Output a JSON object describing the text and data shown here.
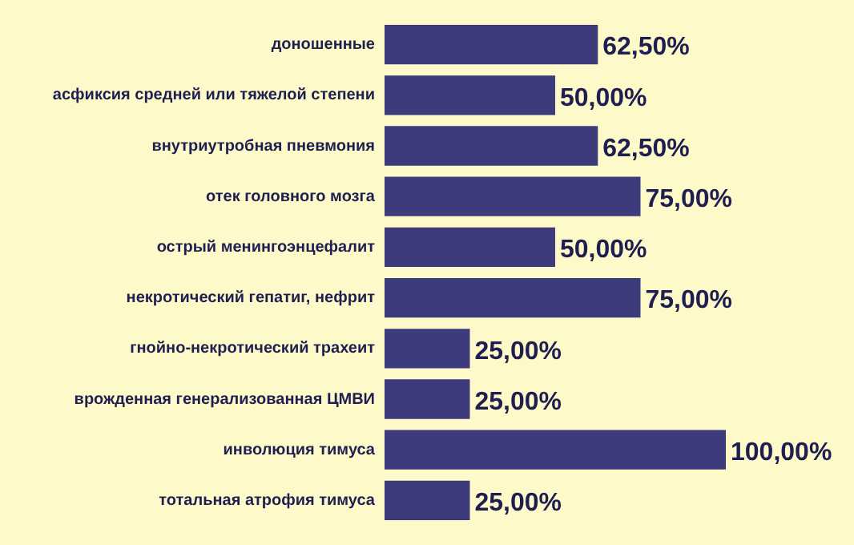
{
  "chart_data": {
    "type": "bar",
    "orientation": "horizontal",
    "categories": [
      "доношенные",
      "асфиксия средней или тяжелой степени",
      "внутриутробная пневмония",
      "отек головного мозга",
      "острый менингоэнцефалит",
      "некротический гепатиг, нефрит",
      "гнойно-некротический трахеит",
      "врожденная генерализованная ЦМВИ",
      "инволюция тимуса",
      "тотальная атрофия тимуса"
    ],
    "series": [
      {
        "color": "#3d3b7c",
        "values": [
          62.5,
          50,
          62.5,
          75,
          50,
          75,
          25,
          25,
          100,
          25
        ],
        "value_labels": [
          "62,50%",
          "50,00%",
          "62,50%",
          "75,00%",
          "50,00%",
          "75,00%",
          "25,00%",
          "25,00%",
          "100,00%",
          "25,00%"
        ]
      }
    ],
    "tick_labels": "y"
  }
}
